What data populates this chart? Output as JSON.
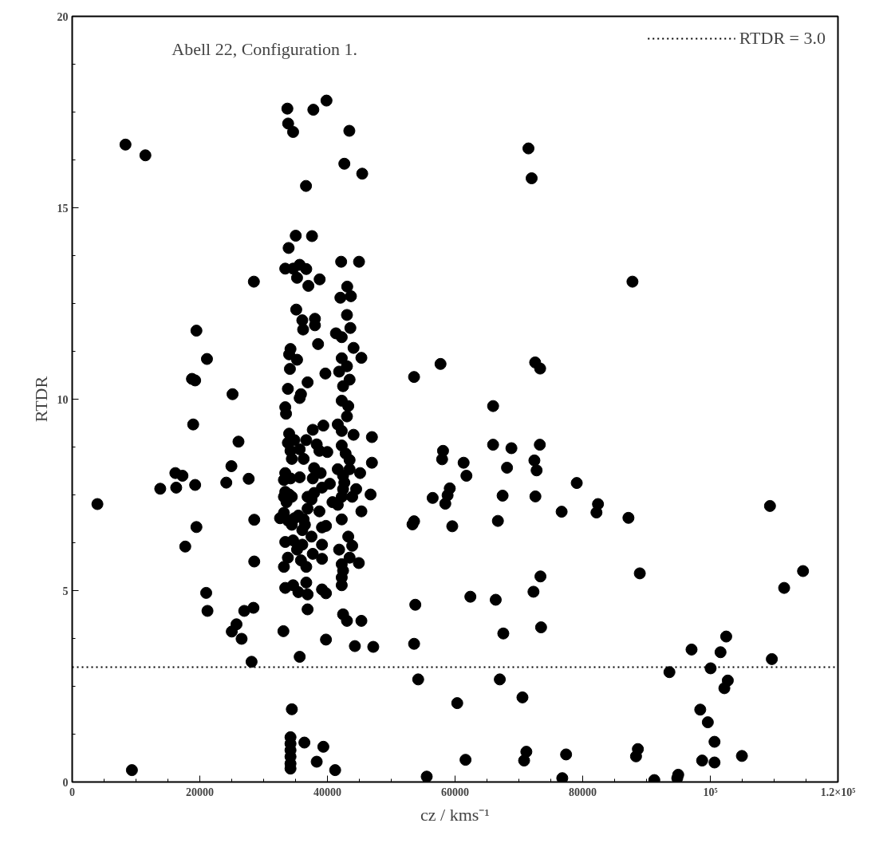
{
  "chart_data": {
    "type": "scatter",
    "title": "Abell 22, Configuration 1.",
    "xlabel": "cz / kms⁻¹",
    "ylabel": "RTDR",
    "xlim": [
      0,
      120000
    ],
    "ylim": [
      0,
      20
    ],
    "xticks": [
      0,
      20000,
      40000,
      60000,
      80000,
      {
        "value": 100000,
        "label": "10⁵"
      },
      {
        "value": 120000,
        "label": "1.2×10⁵"
      }
    ],
    "yticks": [
      0,
      5,
      10,
      15,
      20
    ],
    "grid": false,
    "legend": "top right",
    "marker": "circle",
    "ref_lines": [
      {
        "axis": "y",
        "value": 3.0,
        "label": "RTDR = 3.0",
        "line_style": "dotted",
        "color": "#000000"
      }
    ],
    "series": [
      {
        "color": "#000000",
        "x": [
          3950,
          8350,
          9360,
          11470,
          13800,
          16170,
          16300,
          17280,
          17720,
          18770,
          18960,
          19270,
          19270,
          19470,
          19470,
          21000,
          21120,
          21200,
          24150,
          24950,
          25010,
          25130,
          25750,
          26060,
          26550,
          26960,
          27660,
          28110,
          28410,
          28470,
          28530,
          28530,
          33720,
          37790,
          39850,
          33840,
          34620,
          43430,
          42650,
          45450,
          36640,
          35030,
          37580,
          33920,
          42150,
          44950,
          33390,
          34620,
          35650,
          36680,
          35240,
          37010,
          38780,
          43100,
          42030,
          43680,
          35110,
          36060,
          38040,
          38040,
          36190,
          43060,
          43590,
          38530,
          41330,
          42240,
          34210,
          34000,
          35240,
          34120,
          39680,
          44090,
          45320,
          42240,
          43060,
          41830,
          43470,
          42450,
          36890,
          33800,
          35850,
          33390,
          33510,
          42240,
          43260,
          43060,
          35650,
          37700,
          39360,
          41620,
          42240,
          44090,
          46970,
          34000,
          33800,
          34830,
          36680,
          34210,
          35650,
          38320,
          38740,
          39980,
          42240,
          42850,
          43470,
          34420,
          36270,
          46970,
          33390,
          33180,
          34210,
          35650,
          37910,
          38940,
          37700,
          41620,
          42450,
          43470,
          45120,
          40380,
          39150,
          37910,
          36890,
          42650,
          42450,
          44500,
          43880,
          42240,
          40790,
          41620,
          46760,
          33390,
          33180,
          34420,
          33590,
          34000,
          37500,
          36890,
          38740,
          39770,
          39150,
          42240,
          45320,
          33180,
          32570,
          33800,
          34830,
          34420,
          35440,
          36270,
          36470,
          36060,
          33390,
          34620,
          36060,
          35240,
          37500,
          37700,
          39150,
          39150,
          43260,
          43880,
          41830,
          43470,
          42240,
          44920,
          33800,
          33180,
          35850,
          36680,
          42450,
          42240,
          42240,
          33390,
          34620,
          35440,
          36680,
          36890,
          39150,
          39770,
          36890,
          42450,
          43060,
          45320,
          33100,
          39770,
          44300,
          47180,
          35650,
          34420,
          34210,
          34210,
          34210,
          34210,
          34210,
          34210,
          36390,
          39360,
          38320,
          41210,
          53575,
          57720,
          72550,
          73330,
          65960,
          65960,
          68830,
          73280,
          58115,
          57970,
          61340,
          61780,
          68140,
          72430,
          72780,
          79070,
          56490,
          59170,
          58830,
          58470,
          67450,
          72590,
          76700,
          82400,
          82160,
          87170,
          109350,
          53580,
          53330,
          59560,
          66710,
          73380,
          72290,
          88950,
          114530,
          111570,
          53770,
          62400,
          66370,
          67560,
          73480,
          53580,
          97060,
          102490,
          101600,
          109640,
          93590,
          100050,
          54220,
          67010,
          102740,
          102200,
          60340,
          70560,
          98420,
          99610,
          100660,
          61640,
          71170,
          70820,
          77400,
          88650,
          88360,
          98720,
          100660,
          104950,
          55560,
          76800,
          91220,
          94970,
          94820,
          71500,
          72000,
          87800
        ],
        "values": [
          7.26,
          16.65,
          0.31,
          16.37,
          7.66,
          8.07,
          7.69,
          8.0,
          6.15,
          10.53,
          9.34,
          10.49,
          7.76,
          11.79,
          6.66,
          4.94,
          11.05,
          4.47,
          7.82,
          8.25,
          3.93,
          10.13,
          4.12,
          8.89,
          3.74,
          4.47,
          7.92,
          3.14,
          4.55,
          13.07,
          6.85,
          5.76,
          17.59,
          17.56,
          17.8,
          17.2,
          16.98,
          17.01,
          16.15,
          15.89,
          15.57,
          14.27,
          14.26,
          13.95,
          13.59,
          13.59,
          13.41,
          13.41,
          13.51,
          13.4,
          13.17,
          12.96,
          13.13,
          12.94,
          12.65,
          12.69,
          12.34,
          12.06,
          12.1,
          11.93,
          11.82,
          12.2,
          11.86,
          11.44,
          11.72,
          11.62,
          11.31,
          11.17,
          11.03,
          10.79,
          10.67,
          11.34,
          11.08,
          11.07,
          10.86,
          10.72,
          10.51,
          10.34,
          10.44,
          10.27,
          10.13,
          9.79,
          9.62,
          9.96,
          9.82,
          9.55,
          10.03,
          9.2,
          9.31,
          9.34,
          9.17,
          9.07,
          9.01,
          9.1,
          8.86,
          8.93,
          8.93,
          8.65,
          8.69,
          8.82,
          8.65,
          8.62,
          8.79,
          8.58,
          8.41,
          8.44,
          8.44,
          8.34,
          8.07,
          7.89,
          7.93,
          7.96,
          8.2,
          8.07,
          7.93,
          8.17,
          8.0,
          8.17,
          8.07,
          7.79,
          7.69,
          7.55,
          7.45,
          7.82,
          7.65,
          7.65,
          7.45,
          7.45,
          7.31,
          7.24,
          7.51,
          7.58,
          7.45,
          7.45,
          7.31,
          7.51,
          7.38,
          7.14,
          7.07,
          6.69,
          6.65,
          6.86,
          7.07,
          7.03,
          6.89,
          6.83,
          6.89,
          6.72,
          6.96,
          6.86,
          6.72,
          6.58,
          6.27,
          6.31,
          6.2,
          6.07,
          6.41,
          5.96,
          6.2,
          5.83,
          6.41,
          6.17,
          6.07,
          5.86,
          5.69,
          5.72,
          5.86,
          5.62,
          5.79,
          5.62,
          5.52,
          5.34,
          5.14,
          5.07,
          5.14,
          4.96,
          5.21,
          4.9,
          5.03,
          4.93,
          4.51,
          4.38,
          4.21,
          4.21,
          3.94,
          3.72,
          3.55,
          3.53,
          3.27,
          1.9,
          1.17,
          1.0,
          0.83,
          0.66,
          0.48,
          0.35,
          1.03,
          0.92,
          0.53,
          0.31,
          10.58,
          10.92,
          10.96,
          10.8,
          9.82,
          8.81,
          8.72,
          8.81,
          8.65,
          8.43,
          8.34,
          8.0,
          8.21,
          8.4,
          8.14,
          7.81,
          7.42,
          7.67,
          7.49,
          7.27,
          7.48,
          7.46,
          7.06,
          7.26,
          7.04,
          6.9,
          7.21,
          6.81,
          6.73,
          6.68,
          6.82,
          5.37,
          4.97,
          5.45,
          5.51,
          5.07,
          4.63,
          4.84,
          4.76,
          3.88,
          4.04,
          3.61,
          3.46,
          3.8,
          3.39,
          3.21,
          2.87,
          2.97,
          2.68,
          2.68,
          2.65,
          2.45,
          2.06,
          2.21,
          1.89,
          1.56,
          1.05,
          0.58,
          0.79,
          0.56,
          0.72,
          0.86,
          0.67,
          0.56,
          0.51,
          0.68,
          0.14,
          0.1,
          0.05,
          0.19,
          0.1,
          16.55,
          15.77,
          13.07
        ]
      }
    ]
  }
}
